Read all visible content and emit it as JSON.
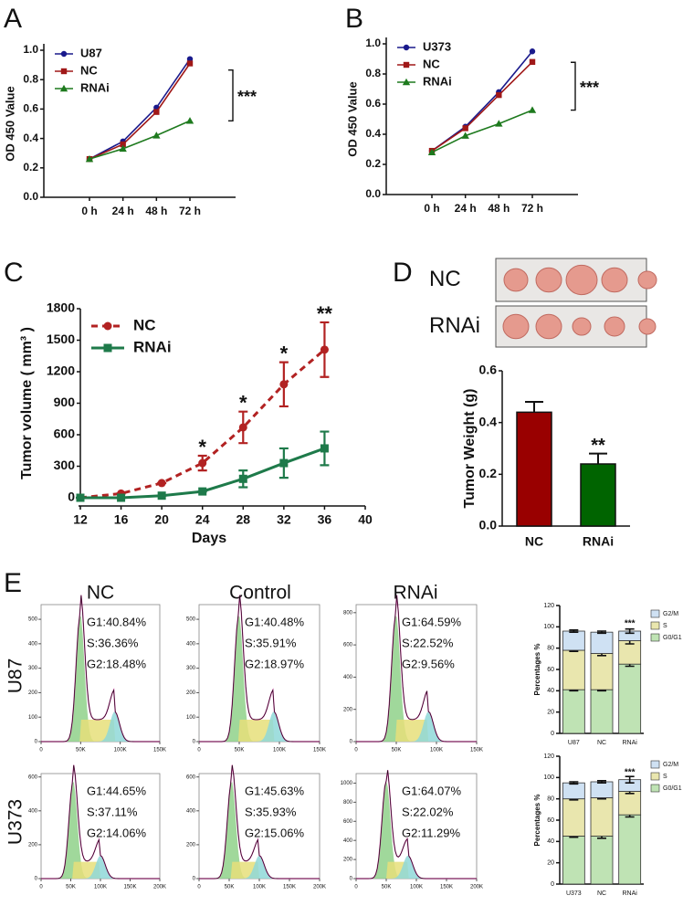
{
  "figure": {
    "panel_labels": [
      "A",
      "B",
      "C",
      "D",
      "E"
    ],
    "column_titles": [
      "NC",
      "Control",
      "RNAi"
    ],
    "row_labels": [
      "U87",
      "U373"
    ]
  },
  "chart_data": [
    {
      "type": "line",
      "y_label": "OD 450 Value",
      "categories": [
        "0 h",
        "24 h",
        "48 h",
        "72 h"
      ],
      "series": [
        {
          "name": "U87",
          "color": "#1a1a8c",
          "marker": "circle",
          "values": [
            0.26,
            0.38,
            0.61,
            0.94
          ]
        },
        {
          "name": "NC",
          "color": "#a01818",
          "marker": "square",
          "values": [
            0.26,
            0.36,
            0.58,
            0.91
          ]
        },
        {
          "name": "RNAi",
          "color": "#1e7a1e",
          "marker": "triangle",
          "values": [
            0.26,
            0.33,
            0.42,
            0.52
          ]
        }
      ],
      "ylim": [
        0,
        1
      ],
      "yticks": [
        {
          "value": 0,
          "label": "0.0"
        },
        0.2,
        0.4,
        0.6,
        0.8,
        {
          "value": 1,
          "label": "1.0"
        }
      ],
      "annotation": "***"
    },
    {
      "type": "line",
      "y_label": "OD 450 Value",
      "categories": [
        "0 h",
        "24 h",
        "48 h",
        "72 h"
      ],
      "series": [
        {
          "name": "U373",
          "color": "#1a1a8c",
          "marker": "circle",
          "values": [
            0.29,
            0.45,
            0.68,
            0.95
          ]
        },
        {
          "name": "NC",
          "color": "#a01818",
          "marker": "square",
          "values": [
            0.29,
            0.44,
            0.66,
            0.88
          ]
        },
        {
          "name": "RNAi",
          "color": "#1e7a1e",
          "marker": "triangle",
          "values": [
            0.28,
            0.39,
            0.47,
            0.56
          ]
        }
      ],
      "ylim": [
        0,
        1
      ],
      "yticks": [
        {
          "value": 0,
          "label": "0.0"
        },
        0.2,
        0.4,
        0.6,
        0.8,
        {
          "value": 1,
          "label": "1.0"
        }
      ],
      "annotation": "***"
    },
    {
      "type": "errorline",
      "x_label": "Days",
      "y_label": "Tumor volume ( mm³ )",
      "x": [
        12,
        16,
        20,
        24,
        28,
        32,
        36
      ],
      "series": [
        {
          "name": "NC",
          "color": "#b22222",
          "marker": "circle",
          "dashed": true,
          "values": [
            0,
            40,
            140,
            330,
            670,
            1080,
            1410
          ],
          "errors": [
            0,
            0,
            0,
            70,
            150,
            210,
            260
          ]
        },
        {
          "name": "RNAi",
          "color": "#1e7a4a",
          "marker": "square",
          "dashed": false,
          "values": [
            0,
            0,
            20,
            60,
            180,
            330,
            470
          ],
          "errors": [
            0,
            0,
            0,
            0,
            80,
            140,
            160
          ]
        }
      ],
      "xlim": [
        12,
        40
      ],
      "xticks": [
        12,
        16,
        20,
        24,
        28,
        32,
        36,
        40
      ],
      "ylim": [
        0,
        1800
      ],
      "yticks": [
        0,
        300,
        600,
        900,
        1200,
        1500,
        1800
      ],
      "annotations": [
        {
          "x": 24,
          "text": "*"
        },
        {
          "x": 28,
          "text": "*"
        },
        {
          "x": 32,
          "text": "*"
        },
        {
          "x": 36,
          "text": "**"
        }
      ]
    },
    {
      "type": "bar",
      "y_label": "Tumor Weight (g)",
      "photo_labels": [
        "NC",
        "RNAi"
      ],
      "categories": [
        "NC",
        "RNAi"
      ],
      "values": [
        0.44,
        0.24
      ],
      "errors": [
        0.04,
        0.04
      ],
      "colors": [
        "#990000",
        "#006400"
      ],
      "ylim": [
        0,
        0.6
      ],
      "yticks": [
        {
          "value": 0,
          "label": "0.0"
        },
        0.2,
        0.4,
        0.6
      ],
      "annotation": "**"
    },
    {
      "type": "flow",
      "stats": [
        "G1:40.84%",
        "S:36.36%",
        "G2:18.48%"
      ],
      "xlim": [
        0,
        150000
      ],
      "xticks": [
        0,
        {
          "value": 50000,
          "label": "50K"
        },
        {
          "value": 100000,
          "label": "100K"
        },
        {
          "value": 150000,
          "label": "150K"
        }
      ],
      "ylim": [
        0,
        560
      ],
      "yticks": [
        0,
        100,
        200,
        300,
        400,
        500
      ]
    },
    {
      "type": "flow",
      "stats": [
        "G1:40.48%",
        "S:35.91%",
        "G2:18.97%"
      ],
      "xlim": [
        0,
        150000
      ],
      "xticks": [
        0,
        {
          "value": 50000,
          "label": "50K"
        },
        {
          "value": 100000,
          "label": "100K"
        },
        {
          "value": 150000,
          "label": "150K"
        }
      ],
      "ylim": [
        0,
        560
      ],
      "yticks": [
        0,
        100,
        200,
        300,
        400,
        500
      ]
    },
    {
      "type": "flow",
      "stats": [
        "G1:64.59%",
        "S:22.52%",
        "G2:9.56%"
      ],
      "xlim": [
        0,
        150000
      ],
      "xticks": [
        0,
        {
          "value": 50000,
          "label": "50K"
        },
        {
          "value": 100000,
          "label": "100K"
        },
        {
          "value": 150000,
          "label": "150K"
        }
      ],
      "ylim": [
        0,
        850
      ],
      "yticks": [
        0,
        200,
        400,
        600,
        800
      ]
    },
    {
      "type": "flow",
      "stats": [
        "G1:44.65%",
        "S:37.11%",
        "G2:14.06%"
      ],
      "xlim": [
        0,
        200000
      ],
      "xticks": [
        0,
        {
          "value": 50000,
          "label": "50K"
        },
        {
          "value": 100000,
          "label": "100K"
        },
        {
          "value": 150000,
          "label": "150K"
        },
        {
          "value": 200000,
          "label": "200K"
        }
      ],
      "ylim": [
        0,
        620
      ],
      "yticks": [
        0,
        200,
        400,
        600
      ]
    },
    {
      "type": "flow",
      "stats": [
        "G1:45.63%",
        "S:35.93%",
        "G2:15.06%"
      ],
      "xlim": [
        0,
        200000
      ],
      "xticks": [
        0,
        {
          "value": 50000,
          "label": "50K"
        },
        {
          "value": 100000,
          "label": "100K"
        },
        {
          "value": 150000,
          "label": "150K"
        },
        {
          "value": 200000,
          "label": "200K"
        }
      ],
      "ylim": [
        0,
        620
      ],
      "yticks": [
        0,
        200,
        400,
        600
      ]
    },
    {
      "type": "flow",
      "stats": [
        "G1:64.07%",
        "S:22.02%",
        "G2:11.29%"
      ],
      "xlim": [
        0,
        200000
      ],
      "xticks": [
        0,
        {
          "value": 50000,
          "label": "50K"
        },
        {
          "value": 100000,
          "label": "100K"
        },
        {
          "value": 150000,
          "label": "150K"
        },
        {
          "value": 200000,
          "label": "200K"
        }
      ],
      "ylim": [
        0,
        1100
      ],
      "yticks": [
        0,
        200,
        400,
        600,
        800,
        1000
      ]
    },
    {
      "type": "stacked",
      "y_label": "Percentages %",
      "categories": [
        "U87",
        "NC",
        "RNAi"
      ],
      "series": [
        {
          "name": "G0/G1",
          "color": "#bfe3b4",
          "values": [
            41,
            41,
            65
          ],
          "errors": [
            1,
            1,
            2
          ]
        },
        {
          "name": "S",
          "color": "#e9e6ae",
          "values": [
            37,
            34,
            22
          ],
          "errors": [
            1,
            2,
            3
          ]
        },
        {
          "name": "G2/M",
          "color": "#cfe1f3",
          "values": [
            18,
            20,
            9
          ],
          "errors": [
            1,
            1,
            2
          ]
        }
      ],
      "ylim": [
        0,
        120
      ],
      "yticks": [
        0,
        20,
        40,
        60,
        80,
        100,
        120
      ],
      "annotation": "***"
    },
    {
      "type": "stacked",
      "y_label": "Percentages %",
      "categories": [
        "U373",
        "NC",
        "RNAi"
      ],
      "series": [
        {
          "name": "G0/G1",
          "color": "#bfe3b4",
          "values": [
            45,
            45,
            65
          ],
          "errors": [
            1,
            2,
            2
          ]
        },
        {
          "name": "S",
          "color": "#e9e6ae",
          "values": [
            35,
            36,
            22
          ],
          "errors": [
            1,
            1,
            2
          ]
        },
        {
          "name": "G2/M",
          "color": "#cfe1f3",
          "values": [
            15,
            15,
            11
          ],
          "errors": [
            1,
            1,
            3
          ]
        }
      ],
      "ylim": [
        0,
        120
      ],
      "yticks": [
        0,
        20,
        40,
        60,
        80,
        100,
        120
      ],
      "annotation": "***"
    }
  ]
}
